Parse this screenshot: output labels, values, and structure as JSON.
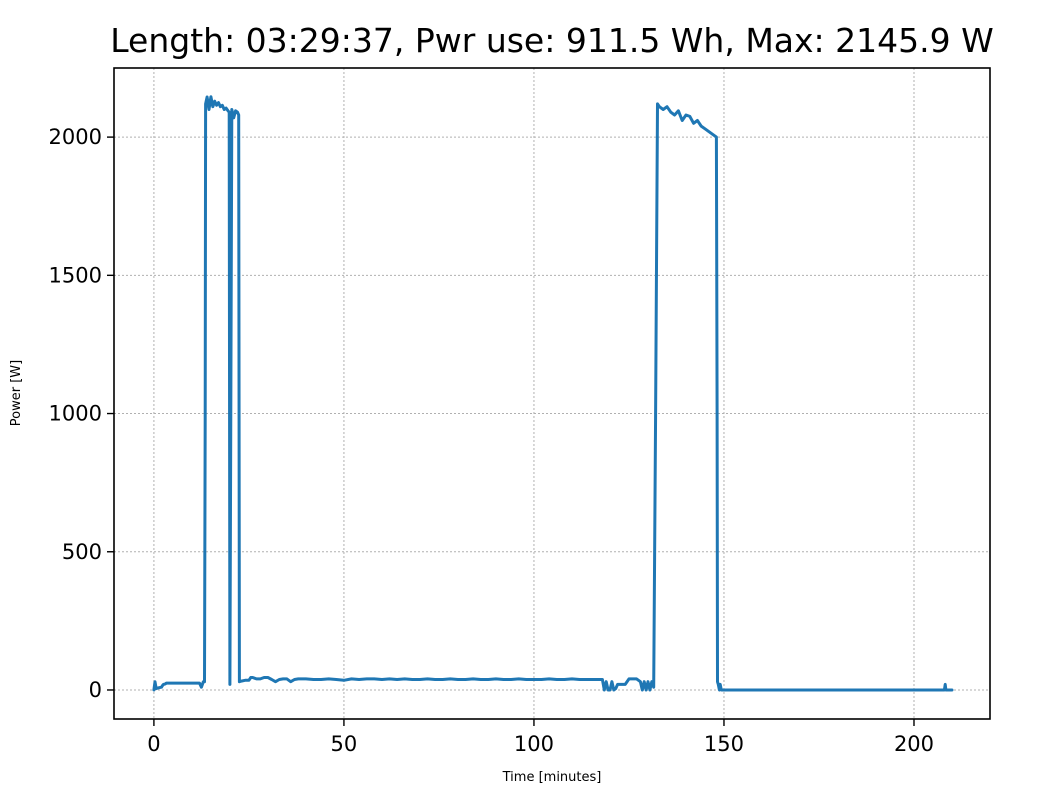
{
  "chart_data": {
    "type": "line",
    "title": "Length: 03:29:37, Pwr use: 911.5 Wh, Max: 2145.9 W",
    "xlabel": "Time [minutes]",
    "ylabel": "Power [W]",
    "xlim": [
      -10.5,
      220
    ],
    "ylim": [
      -105,
      2250
    ],
    "xticks": [
      0,
      50,
      100,
      150,
      200
    ],
    "yticks": [
      0,
      500,
      1000,
      1500,
      2000
    ],
    "grid": true,
    "line_color": "#1f77b4",
    "series": [
      {
        "x": [
          0,
          0.3,
          0.6,
          1.2,
          2.0,
          2.2,
          2.5,
          3.0,
          3.3,
          5,
          8,
          10,
          12,
          12.5,
          13,
          13.3,
          13.5,
          13.6,
          14.0,
          14.5,
          15.0,
          15.5,
          16.0,
          16.5,
          17,
          17.5,
          18,
          18.5,
          19,
          19.5,
          19.8,
          20.0,
          20.5,
          21.0,
          21.5,
          22.0,
          22.3,
          22.5,
          23,
          24,
          25,
          25.5,
          26,
          27,
          28,
          29,
          30,
          31,
          32,
          33,
          34,
          35,
          36,
          37,
          38,
          40,
          42,
          44,
          46,
          48,
          50,
          52,
          54,
          56,
          58,
          60,
          62,
          64,
          66,
          68,
          70,
          72,
          74,
          76,
          78,
          80,
          82,
          84,
          86,
          88,
          90,
          92,
          94,
          96,
          98,
          100,
          102,
          104,
          106,
          108,
          110,
          112,
          114,
          116,
          118,
          118.5,
          119,
          119.5,
          120,
          120.5,
          121,
          121.5,
          122,
          123,
          124,
          125,
          126,
          127,
          128,
          128.5,
          129,
          129.5,
          130,
          130.5,
          131,
          131.5,
          132,
          132.5,
          133,
          134,
          135,
          136,
          137,
          138,
          139,
          140,
          141,
          142,
          143,
          144,
          145,
          146,
          147,
          148,
          148.2,
          148.3,
          148.5,
          148.8,
          149.0,
          149.3,
          149.6,
          150,
          152,
          160,
          170,
          180,
          190,
          200,
          205,
          207,
          208,
          208.2,
          208.4,
          208.6,
          209,
          209.5,
          210
        ],
        "y": [
          0,
          30,
          5,
          8,
          10,
          15,
          20,
          22,
          25,
          25,
          25,
          25,
          25,
          10,
          30,
          30,
          1000,
          2120,
          2145,
          2100,
          2146,
          2110,
          2130,
          2115,
          2125,
          2110,
          2115,
          2100,
          2105,
          2095,
          2090,
          20,
          2100,
          2070,
          2095,
          2090,
          2080,
          30,
          32,
          35,
          35,
          45,
          45,
          40,
          40,
          45,
          45,
          38,
          30,
          38,
          40,
          40,
          30,
          38,
          40,
          40,
          38,
          38,
          40,
          38,
          35,
          40,
          38,
          40,
          40,
          38,
          40,
          38,
          40,
          38,
          38,
          40,
          38,
          38,
          40,
          38,
          38,
          40,
          38,
          38,
          40,
          38,
          38,
          40,
          38,
          38,
          38,
          40,
          38,
          38,
          40,
          38,
          38,
          38,
          38,
          0,
          30,
          0,
          0,
          30,
          0,
          5,
          20,
          20,
          20,
          40,
          40,
          40,
          30,
          0,
          30,
          0,
          30,
          0,
          30,
          10,
          1000,
          2120,
          2110,
          2100,
          2110,
          2090,
          2080,
          2095,
          2060,
          2080,
          2075,
          2050,
          2060,
          2040,
          2030,
          2020,
          2010,
          2000,
          1000,
          30,
          20,
          0,
          20,
          0,
          0,
          0,
          0,
          0,
          0,
          0,
          0,
          0,
          0,
          0,
          0,
          20,
          0,
          0,
          0,
          0,
          0
        ]
      }
    ]
  }
}
